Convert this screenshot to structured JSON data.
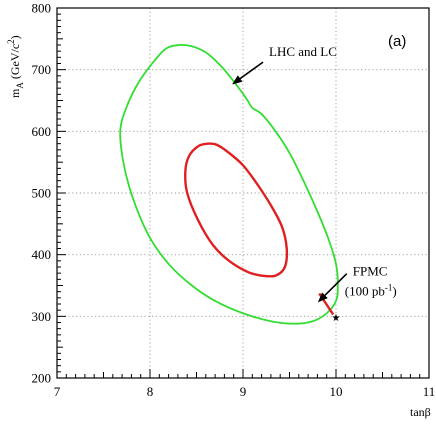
{
  "chart_data": {
    "type": "line",
    "panel_label": "(a)",
    "xlabel": "tanβ",
    "ylabel": {
      "main": "m",
      "sub": "A",
      "unit_open": " (GeV/c",
      "unit_sup": "2",
      "unit_close": ")"
    },
    "xlim": [
      7,
      11
    ],
    "ylim": [
      200,
      800
    ],
    "x_ticks": [
      7,
      8,
      9,
      10,
      11
    ],
    "y_ticks": [
      200,
      300,
      400,
      500,
      600,
      700,
      800
    ],
    "x_tick_labels": [
      "7",
      "8",
      "9",
      "10",
      "11"
    ],
    "y_tick_labels": [
      "200",
      "300",
      "400",
      "500",
      "600",
      "700",
      "800"
    ],
    "grid": true,
    "series": [
      {
        "color": "#33dd33",
        "closed": true,
        "points": [
          [
            8.32,
            740
          ],
          [
            8.45,
            738
          ],
          [
            8.6,
            728
          ],
          [
            8.75,
            708
          ],
          [
            8.88,
            685
          ],
          [
            8.98,
            665
          ],
          [
            9.05,
            650
          ],
          [
            9.1,
            638
          ],
          [
            9.2,
            628
          ],
          [
            9.35,
            600
          ],
          [
            9.5,
            565
          ],
          [
            9.65,
            520
          ],
          [
            9.8,
            470
          ],
          [
            9.92,
            425
          ],
          [
            10.0,
            385
          ],
          [
            10.02,
            350
          ],
          [
            10.0,
            325
          ],
          [
            9.9,
            305
          ],
          [
            9.75,
            292
          ],
          [
            9.55,
            288
          ],
          [
            9.3,
            292
          ],
          [
            9.0,
            305
          ],
          [
            8.7,
            325
          ],
          [
            8.45,
            350
          ],
          [
            8.2,
            385
          ],
          [
            7.99,
            430
          ],
          [
            7.82,
            490
          ],
          [
            7.72,
            545
          ],
          [
            7.68,
            600
          ],
          [
            7.75,
            640
          ],
          [
            7.88,
            680
          ],
          [
            8.05,
            715
          ],
          [
            8.18,
            735
          ],
          [
            8.32,
            740
          ]
        ]
      },
      {
        "color": "#e02020",
        "closed": true,
        "points": [
          [
            8.62,
            580
          ],
          [
            8.72,
            578
          ],
          [
            8.85,
            565
          ],
          [
            9.0,
            545
          ],
          [
            9.15,
            515
          ],
          [
            9.3,
            480
          ],
          [
            9.42,
            445
          ],
          [
            9.47,
            410
          ],
          [
            9.45,
            380
          ],
          [
            9.35,
            366
          ],
          [
            9.2,
            366
          ],
          [
            9.05,
            372
          ],
          [
            8.85,
            390
          ],
          [
            8.68,
            415
          ],
          [
            8.52,
            455
          ],
          [
            8.4,
            500
          ],
          [
            8.38,
            535
          ],
          [
            8.42,
            560
          ],
          [
            8.52,
            576
          ],
          [
            8.62,
            580
          ]
        ]
      },
      {
        "color": "#e02020",
        "closed": false,
        "points": [
          [
            9.82,
            337
          ],
          [
            9.97,
            303
          ]
        ]
      }
    ],
    "markers": [
      {
        "x": 10.0,
        "y": 299,
        "symbol": "★"
      }
    ],
    "annotations": [
      {
        "text": "LHC and LC",
        "x": 9.28,
        "y": 722,
        "arrow_to": [
          8.9,
          678
        ]
      },
      {
        "text": "FPMC",
        "x": 10.18,
        "y": 366,
        "arrow_to": [
          9.82,
          325
        ]
      }
    ],
    "annotation_fpmc_line2": {
      "open": "(100 pb",
      "sup": "-1",
      "close": ")"
    }
  }
}
